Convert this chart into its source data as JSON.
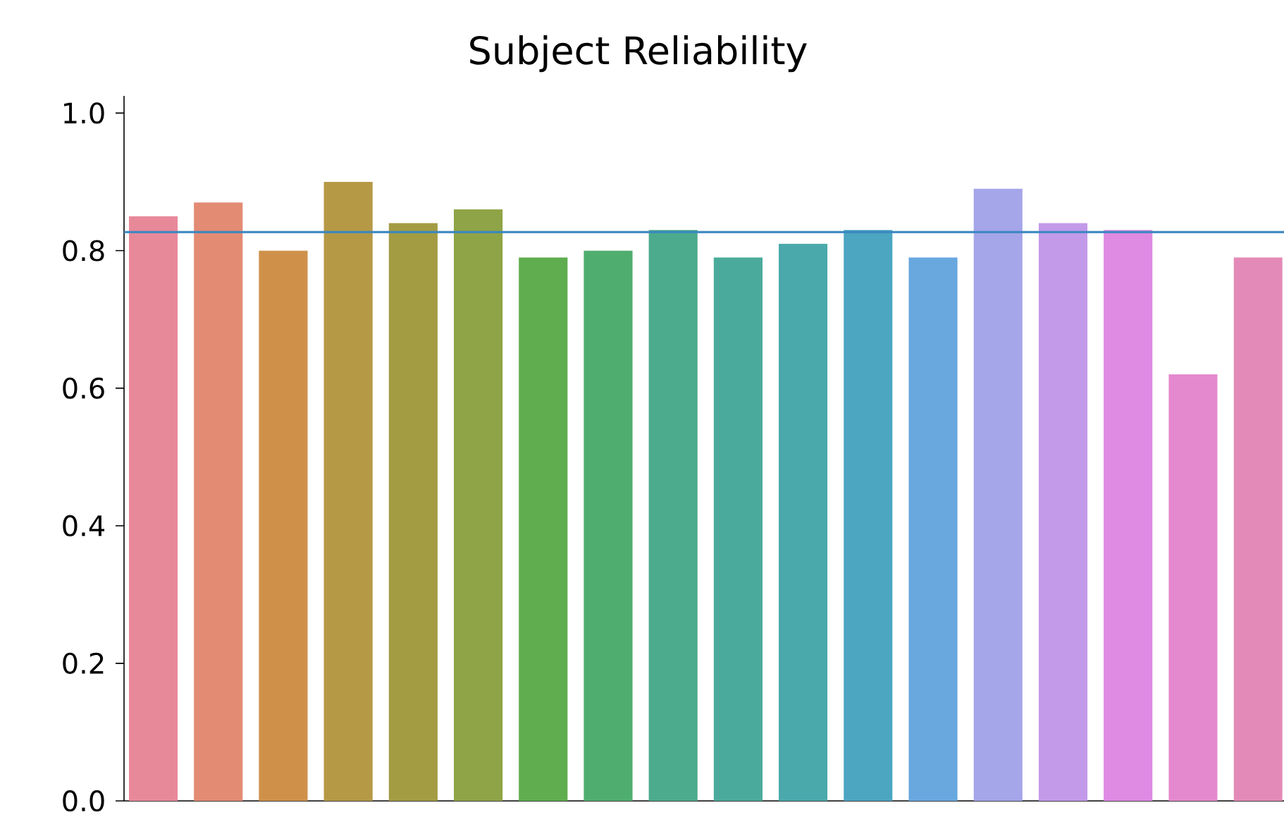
{
  "chart_data": {
    "type": "bar",
    "title": "Subject Reliability",
    "categories": [
      null,
      null,
      null,
      null,
      null,
      null,
      null,
      null,
      null,
      null,
      null,
      null,
      null,
      null,
      null,
      null,
      null,
      null
    ],
    "values": [
      0.85,
      0.87,
      0.8,
      0.9,
      0.84,
      0.86,
      0.79,
      0.8,
      0.83,
      0.79,
      0.81,
      0.83,
      0.79,
      0.89,
      0.84,
      0.83,
      0.62,
      0.79
    ],
    "colors": [
      "#e8899a",
      "#e38b73",
      "#cf914a",
      "#b59945",
      "#a39c43",
      "#8fa446",
      "#5fad4e",
      "#4fae6f",
      "#4cab8c",
      "#4aab9c",
      "#4aa9ab",
      "#4ca5c1",
      "#68a8df",
      "#a5a5e9",
      "#c39ae9",
      "#df8ae3",
      "#e589cf",
      "#e48ab8"
    ],
    "ylim": [
      0,
      1.025
    ],
    "yticks": [
      {
        "value": 0,
        "label": "0.0"
      },
      {
        "value": 0.2,
        "label": "0.2"
      },
      {
        "value": 0.4,
        "label": "0.4"
      },
      {
        "value": 0.6,
        "label": "0.6"
      },
      {
        "value": 0.8,
        "label": "0.8"
      },
      {
        "value": 1.0,
        "label": "1.0"
      }
    ],
    "ref_lines": [
      {
        "axis": "y",
        "value": 0.827,
        "color": "#3a87c0"
      }
    ],
    "grid": false
  }
}
